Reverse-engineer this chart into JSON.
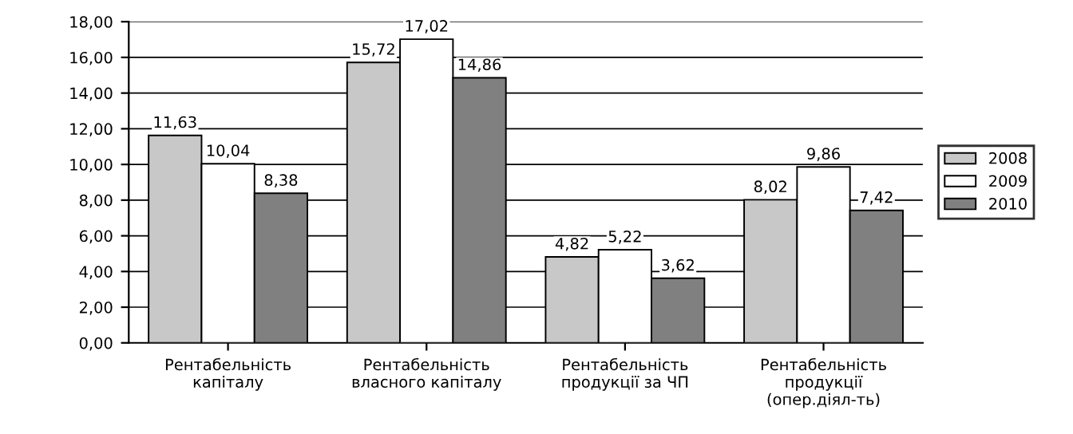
{
  "chart_data": {
    "type": "bar",
    "categories": [
      "Рентабельність\nкапіталу",
      "Рентабельність\nвласного капіталу",
      "Рентабельність\nпродукції за ЧП",
      "Рентабельність\nпродукції\n(опер.діял-ть)"
    ],
    "series": [
      {
        "name": "2008",
        "color": "#c8c8c8",
        "values": [
          11.63,
          15.72,
          4.82,
          8.02
        ],
        "value_labels": [
          "11,63",
          "15,72",
          "4,82",
          "8,02"
        ]
      },
      {
        "name": "2009",
        "color": "#ffffff",
        "values": [
          10.04,
          17.02,
          5.22,
          9.86
        ],
        "value_labels": [
          "10,04",
          "17,02",
          "5,22",
          "9,86"
        ]
      },
      {
        "name": "2010",
        "color": "#808080",
        "values": [
          8.38,
          14.86,
          3.62,
          7.42
        ],
        "value_labels": [
          "8,38",
          "14,86",
          "3,62",
          "7,42"
        ]
      }
    ],
    "ylim": [
      0,
      18
    ],
    "yticks": [
      {
        "value": 0,
        "label": "0,00"
      },
      {
        "value": 2,
        "label": "2,00"
      },
      {
        "value": 4,
        "label": "4,00"
      },
      {
        "value": 6,
        "label": "6,00"
      },
      {
        "value": 8,
        "label": "8,00"
      },
      {
        "value": 10,
        "label": "10,00"
      },
      {
        "value": 12,
        "label": "12,00"
      },
      {
        "value": 14,
        "label": "14,00"
      },
      {
        "value": 16,
        "label": "16,00"
      },
      {
        "value": 18,
        "label": "18,00"
      }
    ],
    "grid": "y",
    "legend": "right"
  }
}
